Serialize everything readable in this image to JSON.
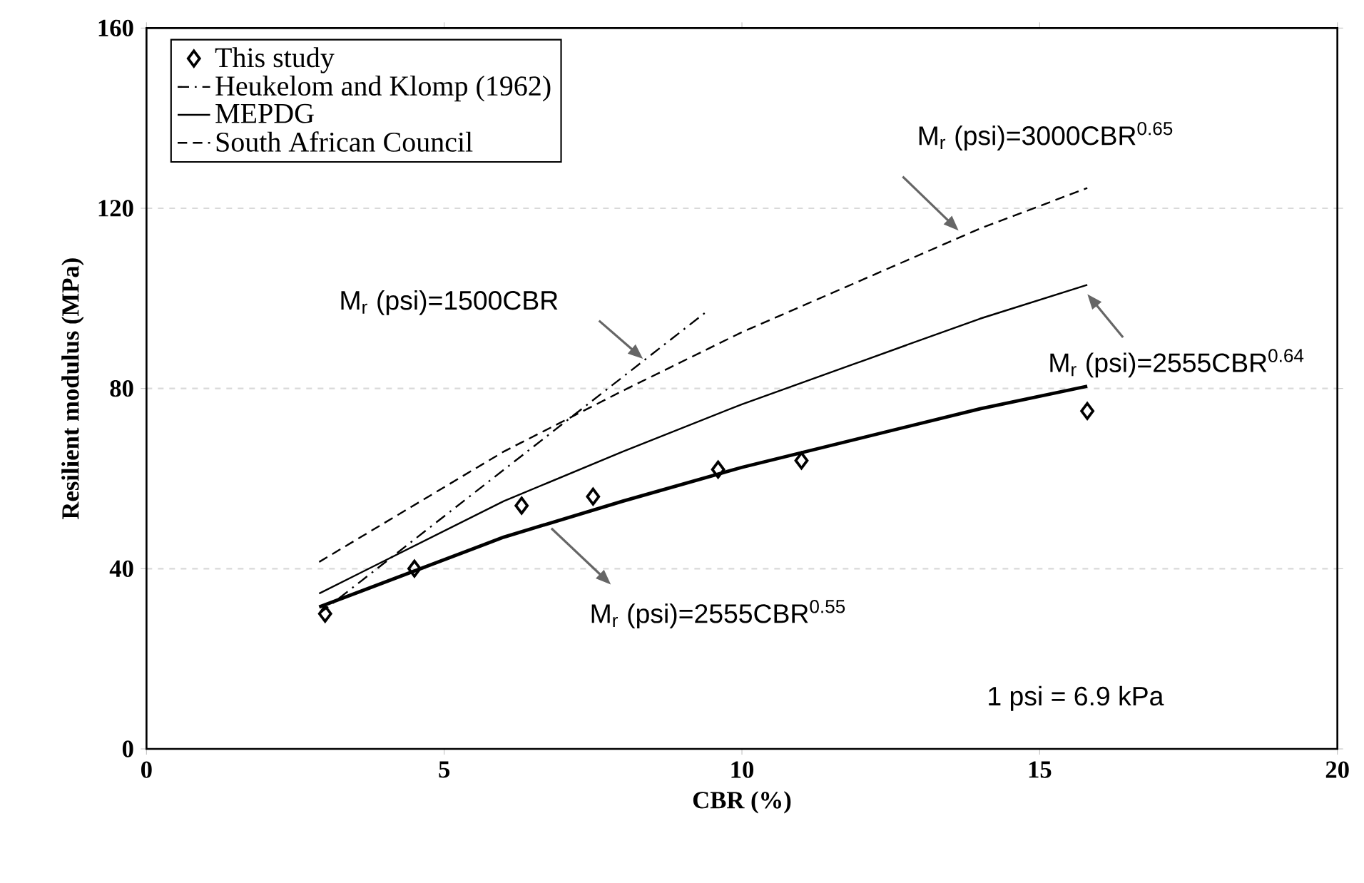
{
  "chart_data": {
    "type": "line",
    "xlabel": "CBR (%)",
    "ylabel": "Resilient modulus (MPa)",
    "xlim": [
      0,
      20
    ],
    "ylim": [
      0,
      160
    ],
    "xticks": [
      0,
      5,
      10,
      15,
      20
    ],
    "yticks": [
      0,
      40,
      80,
      120,
      160
    ],
    "grid": "y",
    "legend": "top left",
    "series": [
      {
        "name": "This study",
        "type": "scatter",
        "marker": "diamond",
        "color": "#000000",
        "x": [
          3.0,
          4.5,
          6.3,
          7.5,
          9.6,
          11.0,
          15.8
        ],
        "values": [
          30,
          40,
          54,
          56,
          62,
          64,
          75
        ]
      },
      {
        "name": "Heukelom and Klomp (1962)",
        "line_style": "dashdot",
        "color": "#000000",
        "x": [
          2.9,
          9.4
        ],
        "values": [
          30,
          97
        ]
      },
      {
        "name": "MEPDG",
        "line_style": "solid",
        "color": "#000000",
        "x": [
          2.9,
          6,
          8,
          10,
          12,
          14,
          15.8
        ],
        "values": [
          34.5,
          55,
          66,
          76.5,
          86,
          95.5,
          103
        ]
      },
      {
        "name": "South African Council",
        "line_style": "dashed",
        "color": "#000000",
        "x": [
          2.9,
          6,
          8,
          10,
          12,
          14,
          15.8
        ],
        "values": [
          41.5,
          66,
          79.5,
          92.5,
          104,
          115.5,
          124.5
        ]
      },
      {
        "line_style": "solid",
        "color": "#000000",
        "x": [
          2.9,
          6,
          8,
          10,
          12,
          14,
          15.8
        ],
        "values": [
          31.5,
          47,
          55,
          62.5,
          69,
          75.5,
          80.5
        ]
      }
    ],
    "annotations": [
      "M$_{r}$ (psi)=1500CBR",
      "M$_{r}$ (psi)=3000CBR$^{0.65}$",
      "M$_{r}$ (psi)=2555CBR$^{0.64}$",
      "M$_{r}$ (psi)=2555CBR$^{0.55}$",
      "1 psi = 6.9 kPa"
    ]
  }
}
